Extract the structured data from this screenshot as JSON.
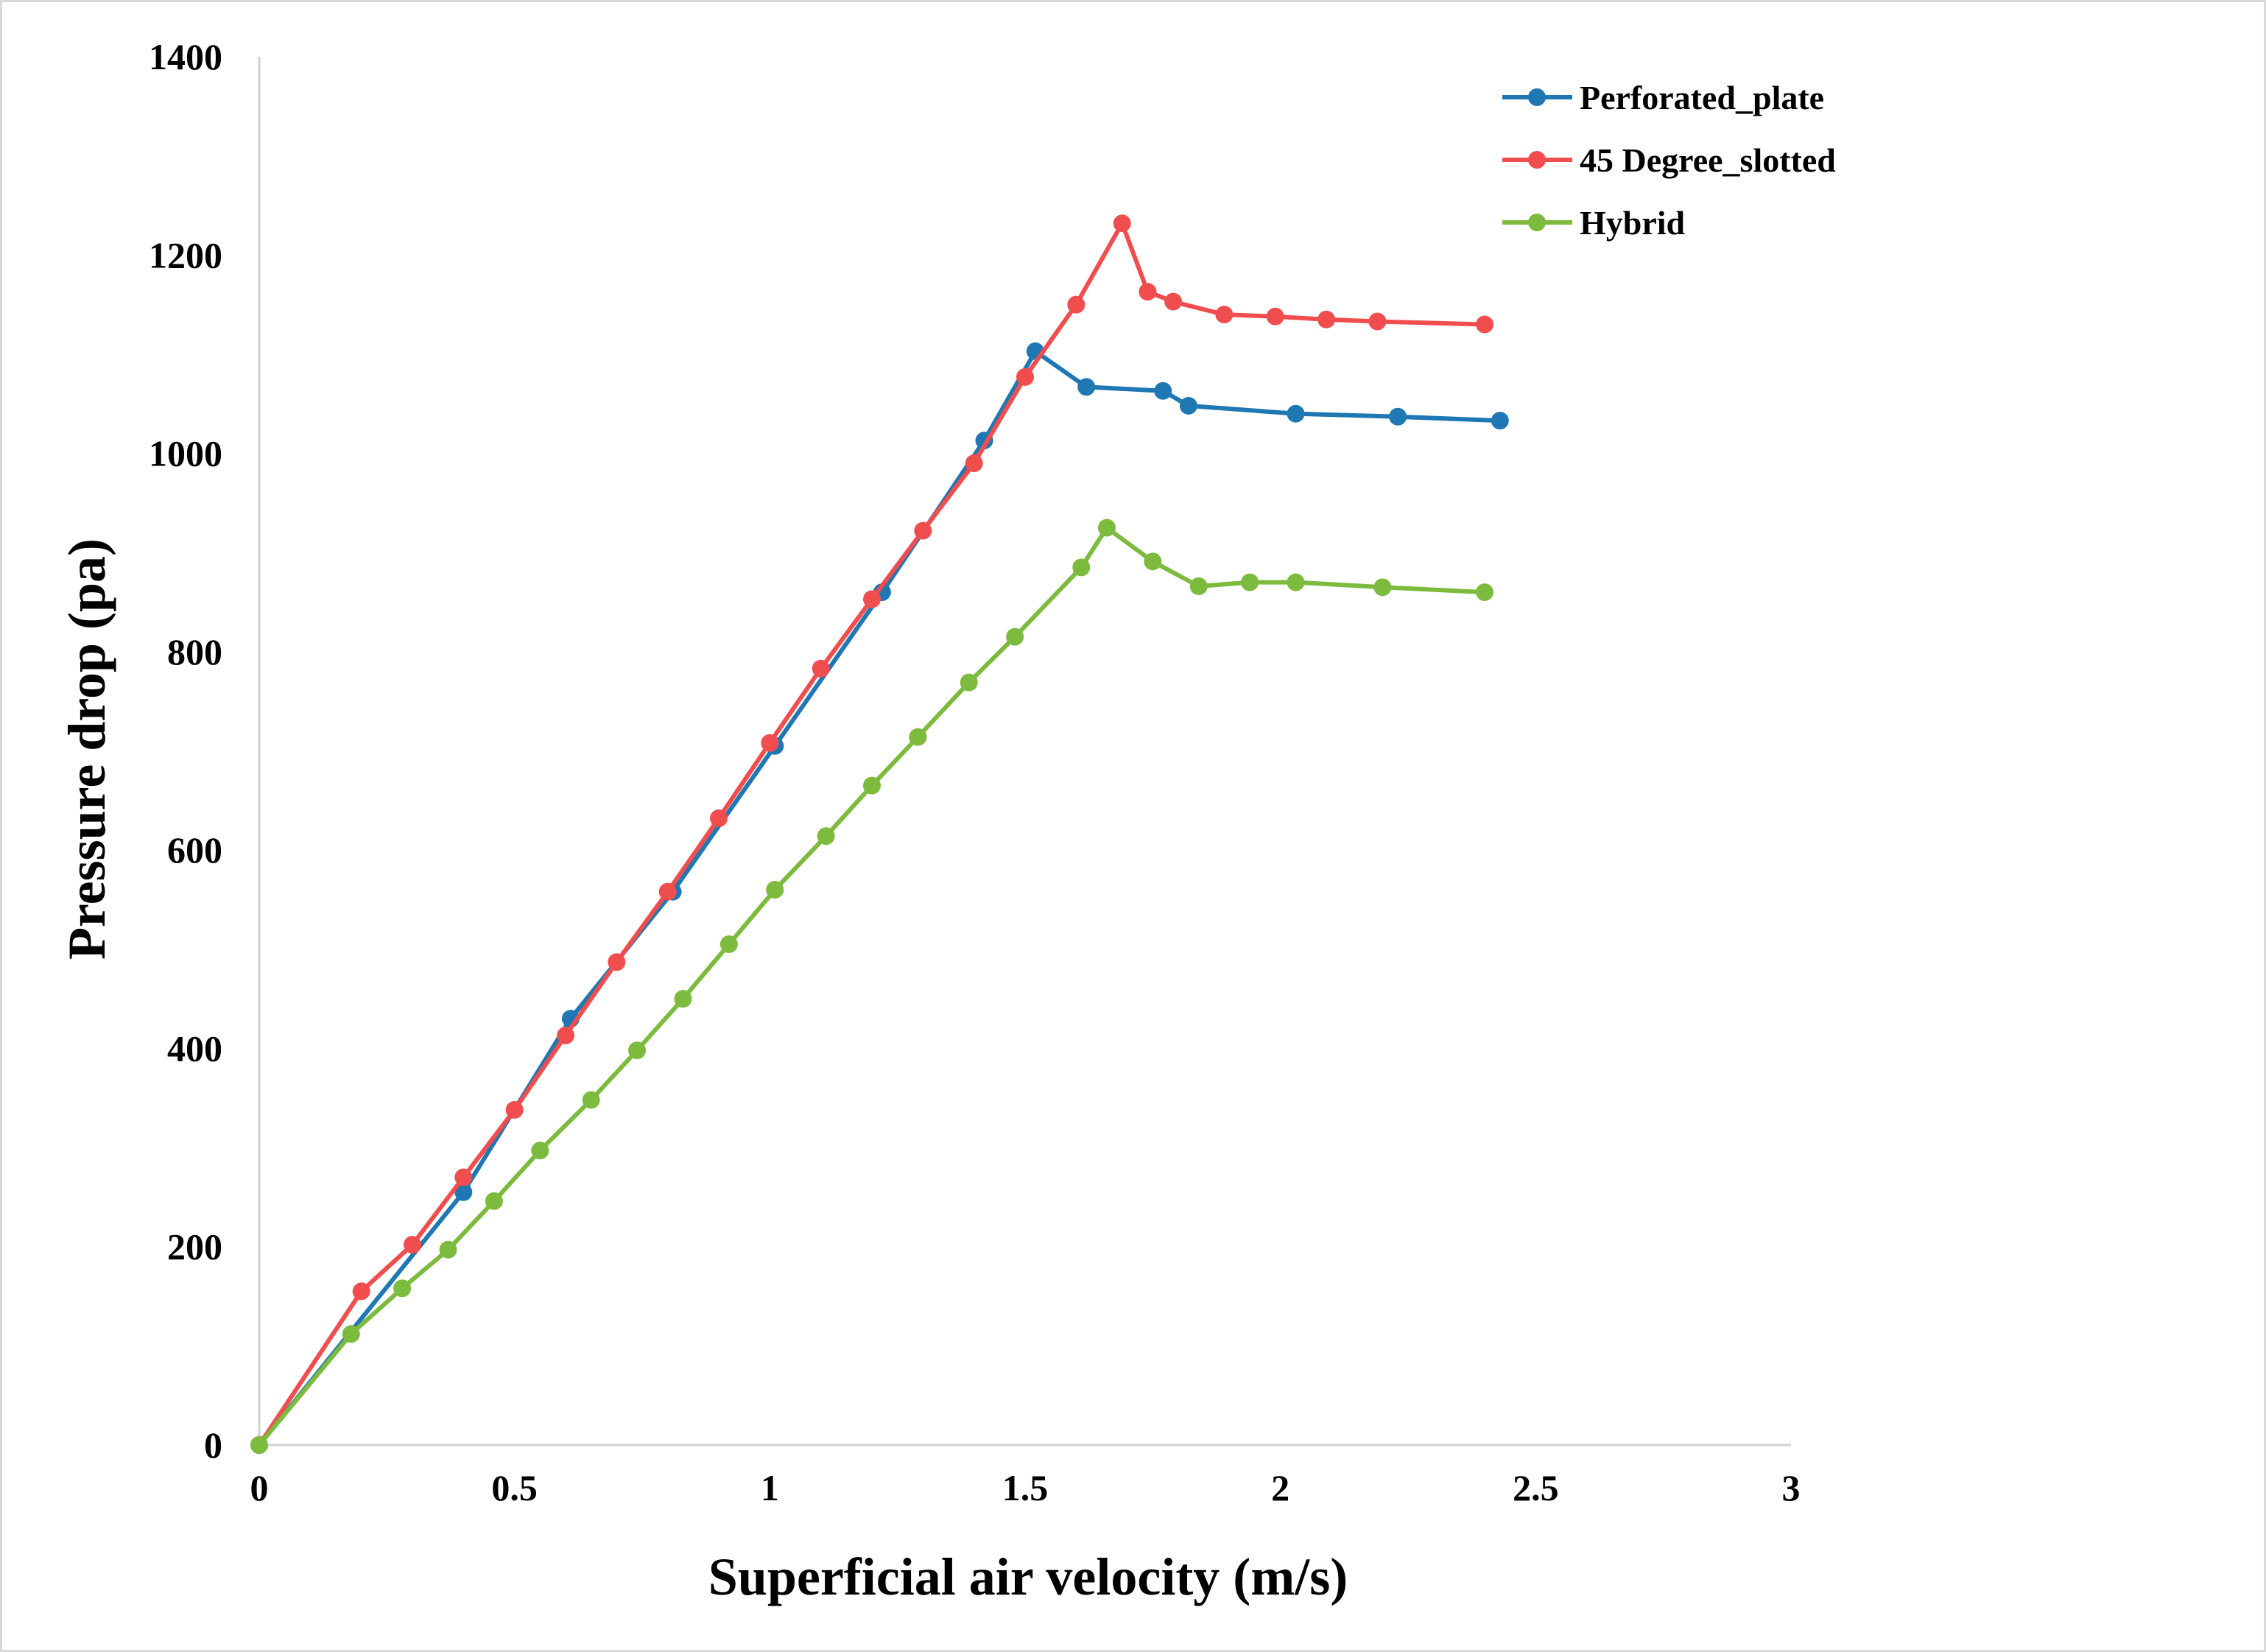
{
  "chart_data": {
    "type": "line",
    "title": "",
    "xlabel": "Superficial air velocity (m/s)",
    "ylabel": "Pressure drop (pa)",
    "xlim": [
      0,
      3
    ],
    "ylim": [
      0,
      1400
    ],
    "xticks": [
      0,
      0.5,
      1,
      1.5,
      2,
      2.5,
      3
    ],
    "xtick_labels": [
      "0",
      "0.5",
      "1",
      "1.5",
      "2",
      "2.5",
      "3"
    ],
    "yticks": [
      0,
      200,
      400,
      600,
      800,
      1000,
      1200,
      1400
    ],
    "ytick_labels": [
      "0",
      "200",
      "400",
      "600",
      "800",
      "1000",
      "1200",
      "1400"
    ],
    "grid": false,
    "legend_position": "top-right",
    "series": [
      {
        "name": "Perforated_plate",
        "color": "#1f77b4",
        "x": [
          0,
          0.4,
          0.61,
          0.81,
          1.01,
          1.22,
          1.42,
          1.52,
          1.62,
          1.77,
          1.82,
          2.03,
          2.23,
          2.43
        ],
        "y": [
          0,
          255,
          430,
          558,
          705,
          860,
          1013,
          1103,
          1067,
          1063,
          1048,
          1040,
          1037,
          1033
        ]
      },
      {
        "name": "45 Degree_slotted",
        "color": "#f04e4e",
        "x": [
          0,
          0.2,
          0.3,
          0.4,
          0.5,
          0.6,
          0.7,
          0.8,
          0.9,
          1.0,
          1.1,
          1.2,
          1.3,
          1.4,
          1.5,
          1.6,
          1.69,
          1.74,
          1.79,
          1.89,
          1.99,
          2.09,
          2.19,
          2.4
        ],
        "y": [
          0,
          155,
          202,
          270,
          338,
          413,
          487,
          558,
          632,
          708,
          783,
          853,
          922,
          990,
          1077,
          1150,
          1232,
          1163,
          1153,
          1140,
          1138,
          1135,
          1133,
          1130
        ]
      },
      {
        "name": "Hybrid",
        "color": "#7dbb3f",
        "x": [
          0,
          0.18,
          0.28,
          0.37,
          0.46,
          0.55,
          0.65,
          0.74,
          0.83,
          0.92,
          1.01,
          1.11,
          1.2,
          1.29,
          1.39,
          1.48,
          1.61,
          1.66,
          1.75,
          1.84,
          1.94,
          2.03,
          2.2,
          2.4
        ],
        "y": [
          0,
          112,
          158,
          197,
          246,
          297,
          348,
          398,
          450,
          505,
          560,
          614,
          665,
          714,
          769,
          815,
          885,
          925,
          891,
          866,
          870,
          870,
          865,
          860
        ]
      }
    ]
  }
}
